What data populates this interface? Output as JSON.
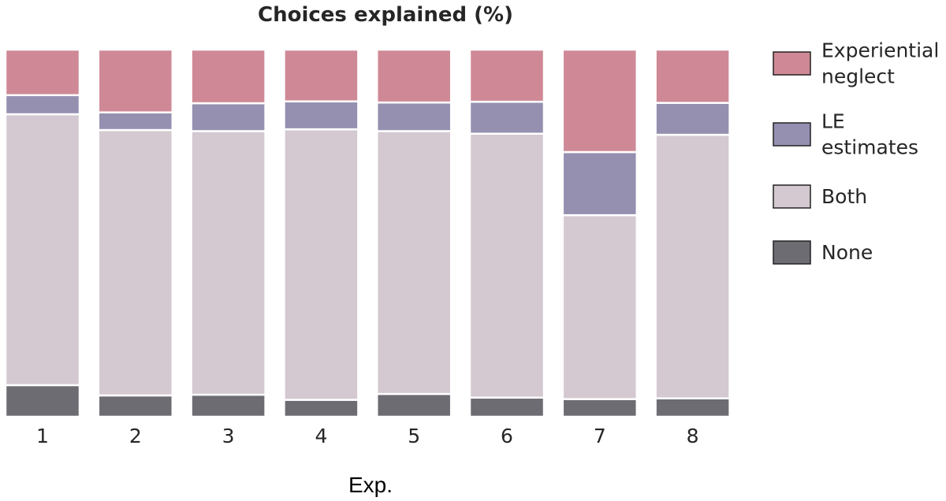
{
  "chart_data": {
    "type": "bar",
    "stacked": true,
    "normalized_percent": true,
    "title": "Choices explained (%)",
    "xlabel": "Exp.",
    "ylabel": "",
    "ylim": [
      0,
      100
    ],
    "grid": false,
    "legend_position": "right",
    "categories": [
      "1",
      "2",
      "3",
      "4",
      "5",
      "6",
      "7",
      "8"
    ],
    "series": [
      {
        "name": "None",
        "legend_lines": [
          "None"
        ],
        "color": "#6e6c73",
        "values": [
          8.6,
          5.8,
          6.0,
          4.6,
          6.2,
          5.2,
          4.8,
          5.0
        ]
      },
      {
        "name": "Both",
        "legend_lines": [
          "Both"
        ],
        "color": "#d4c9d0",
        "values": [
          73.8,
          72.3,
          71.8,
          73.7,
          71.6,
          71.9,
          50.1,
          71.8
        ]
      },
      {
        "name": "LE estimates",
        "legend_lines": [
          "LE",
          "estimates"
        ],
        "color": "#9590b0",
        "values": [
          5.2,
          4.8,
          7.6,
          7.6,
          7.8,
          8.7,
          17.2,
          8.7
        ]
      },
      {
        "name": "Experiential neglect",
        "legend_lines": [
          "Experiential",
          "neglect"
        ],
        "color": "#cf8996",
        "values": [
          12.4,
          17.1,
          14.6,
          14.1,
          14.4,
          14.2,
          27.9,
          14.5
        ]
      }
    ],
    "legend_order": [
      "Experiential neglect",
      "LE estimates",
      "Both",
      "None"
    ]
  }
}
